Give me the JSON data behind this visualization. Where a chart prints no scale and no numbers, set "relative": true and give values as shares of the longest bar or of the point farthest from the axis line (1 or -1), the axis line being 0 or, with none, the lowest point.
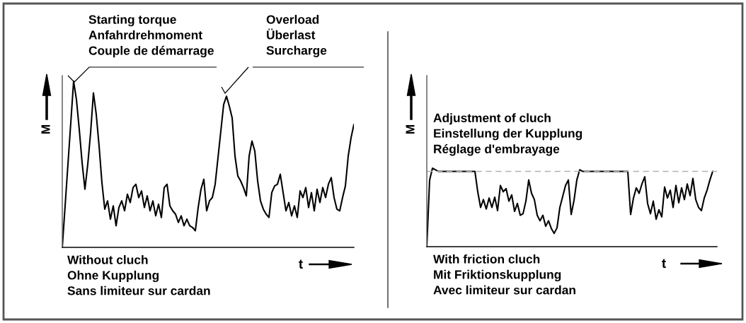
{
  "chart_data": [
    {
      "type": "line",
      "title": "Without cluch\nOhne Kupplung\nSans limiteur sur cardan",
      "xlabel": "t",
      "ylabel": "M",
      "relative": true,
      "categories": [
        null,
        null,
        null,
        null,
        null,
        null,
        null,
        null,
        null,
        null,
        null,
        null,
        null,
        null,
        null,
        null,
        null,
        null,
        null,
        null,
        null,
        null,
        null,
        null,
        null,
        null,
        null,
        null,
        null,
        null,
        null,
        null,
        null,
        null,
        null,
        null,
        null,
        null,
        null,
        null,
        null,
        null,
        null,
        null,
        null,
        null,
        null,
        null,
        null,
        null,
        null,
        null,
        null,
        null,
        null,
        null,
        null,
        null,
        null,
        null,
        null,
        null,
        null,
        null,
        null,
        null,
        null,
        null,
        null,
        null,
        null,
        null,
        null,
        null,
        null,
        null,
        null,
        null,
        null,
        null,
        null,
        null,
        null,
        null,
        null,
        null,
        null,
        null,
        null,
        null,
        null,
        null,
        null,
        null,
        null,
        null,
        null,
        null,
        null,
        null,
        null,
        null,
        null,
        null
      ],
      "series": [
        {
          "color": "#000000",
          "values": [
            0,
            0.25,
            0.5,
            0.75,
            1,
            0.89,
            0.71,
            0.51,
            0.35,
            0.5,
            0.69,
            0.93,
            0.8,
            0.61,
            0.39,
            0.23,
            0.28,
            0.17,
            0.25,
            0.13,
            0.24,
            0.28,
            0.22,
            0.32,
            0.27,
            0.36,
            0.38,
            0.3,
            0.34,
            0.24,
            0.31,
            0.22,
            0.28,
            0.19,
            0.26,
            0.18,
            0.36,
            0.38,
            0.25,
            0.22,
            0.2,
            0.15,
            0.19,
            0.13,
            0.17,
            0.13,
            0.12,
            0.1,
            0.24,
            0.35,
            0.41,
            0.22,
            0.28,
            0.3,
            0.38,
            0.54,
            0.7,
            0.86,
            0.91,
            0.85,
            0.78,
            0.55,
            0.43,
            0.4,
            0.36,
            0.31,
            0.55,
            0.64,
            0.58,
            0.4,
            0.28,
            0.23,
            0.2,
            0.18,
            0.33,
            0.37,
            0.38,
            0.44,
            0.33,
            0.22,
            0.27,
            0.19,
            0.25,
            0.18,
            0.34,
            0.3,
            0.36,
            0.24,
            0.33,
            0.22,
            0.35,
            0.27,
            0.36,
            0.3,
            0.38,
            0.42,
            0.3,
            0.23,
            0.22,
            0.3,
            0.37,
            0.55,
            0.66,
            0.74
          ]
        }
      ],
      "annotations": [
        "Starting torque\nAnfahrdrehmoment\nCouple de démarrage",
        "Overload\nÜberlast\nSurcharge"
      ]
    },
    {
      "type": "line",
      "title": "With friction cluch\nMit Friktionskupplung\nAvec limiteur sur cardan",
      "xlabel": "t",
      "ylabel": "M",
      "relative": true,
      "categories": [
        null,
        null,
        null,
        null,
        null,
        null,
        null,
        null,
        null,
        null,
        null,
        null,
        null,
        null,
        null,
        null,
        null,
        null,
        null,
        null,
        null,
        null,
        null,
        null,
        null,
        null,
        null,
        null,
        null,
        null,
        null,
        null,
        null,
        null,
        null,
        null,
        null,
        null,
        null,
        null,
        null,
        null,
        null,
        null,
        null,
        null,
        null,
        null,
        null,
        null,
        null,
        null,
        null,
        null,
        null,
        null,
        null,
        null,
        null,
        null,
        null,
        null,
        null,
        null,
        null,
        null,
        null,
        null,
        null,
        null,
        null,
        null,
        null,
        null,
        null,
        null,
        null,
        null,
        null,
        null,
        null,
        null,
        null,
        null,
        null,
        null,
        null,
        null,
        null,
        null,
        null,
        null,
        null,
        null,
        null,
        null,
        null,
        null,
        null,
        null,
        null,
        null
      ],
      "series": [
        {
          "color": "#000000",
          "values": [
            0,
            0.85,
            1,
            0.98,
            0.96,
            0.96,
            0.96,
            0.96,
            0.96,
            0.96,
            0.96,
            0.96,
            0.96,
            0.96,
            0.96,
            0.96,
            0.96,
            0.96,
            0.7,
            0.5,
            0.6,
            0.48,
            0.62,
            0.5,
            0.63,
            0.46,
            0.78,
            0.7,
            0.74,
            0.58,
            0.66,
            0.45,
            0.55,
            0.4,
            0.42,
            0.58,
            0.85,
            0.68,
            0.6,
            0.4,
            0.33,
            0.4,
            0.26,
            0.33,
            0.23,
            0.17,
            0.24,
            0.5,
            0.64,
            0.78,
            0.85,
            0.41,
            0.59,
            0.85,
            0.98,
            0.96,
            0.96,
            0.96,
            0.96,
            0.96,
            0.96,
            0.96,
            0.96,
            0.96,
            0.96,
            0.96,
            0.96,
            0.96,
            0.96,
            0.96,
            0.96,
            0.96,
            0.41,
            0.62,
            0.75,
            0.68,
            0.8,
            0.89,
            0.55,
            0.42,
            0.58,
            0.35,
            0.47,
            0.38,
            0.76,
            0.62,
            0.72,
            0.5,
            0.78,
            0.56,
            0.75,
            0.6,
            0.8,
            0.65,
            0.87,
            0.6,
            0.5,
            0.46,
            0.62,
            0.72,
            0.85,
            0.96
          ]
        }
      ],
      "ref_lines": [
        {
          "axis": "y",
          "value": 0.96,
          "label": "Adjustment of cluch\nEinstellung der Kupplung\nRéglage d'embrayage",
          "color": "#b0b0b0",
          "line_style": "dashed"
        }
      ]
    }
  ]
}
